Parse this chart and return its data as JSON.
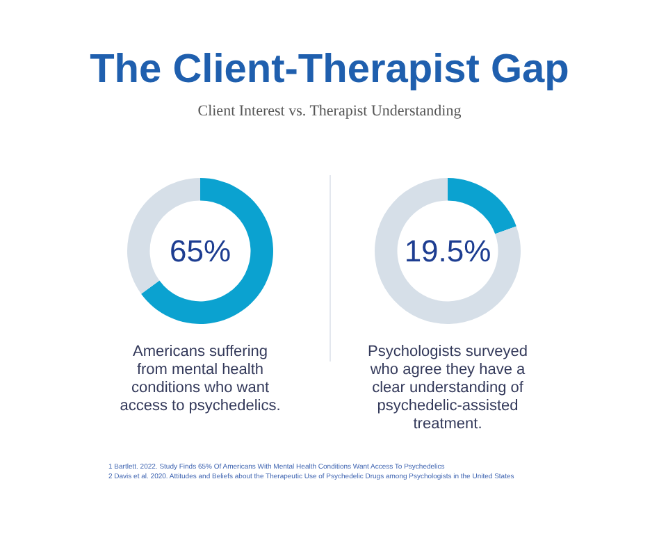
{
  "chart_data": [
    {
      "type": "other",
      "title": "The Client-Therapist Gap",
      "subtitle": "Client Interest vs. Therapist Understanding",
      "annotations": [
        "1 Bartlett. 2022. Study Finds 65% Of Americans With Mental Health Conditions Want Access To Psychedelics",
        "2 Davis et al. 2020. Attitudes and Beliefs about the Therapeutic Use of Psychedelic Drugs among Psychologists in the United States"
      ]
    },
    {
      "type": "donut",
      "categories": [
        null,
        null
      ],
      "values": [
        65,
        35
      ],
      "colors": [
        "#0ba2d0",
        "#d6dfe8"
      ],
      "title": "65%",
      "annotations": [
        "Americans suffering from mental health conditions who want access to psychedelics."
      ]
    },
    {
      "type": "donut",
      "categories": [
        null,
        null
      ],
      "values": [
        19.5,
        80.5
      ],
      "colors": [
        "#0ba2d0",
        "#d6dfe8"
      ],
      "title": "19.5%",
      "annotations": [
        "Psychologists surveyed who agree they have a clear understanding of psychedelic-assisted treatment."
      ]
    }
  ]
}
